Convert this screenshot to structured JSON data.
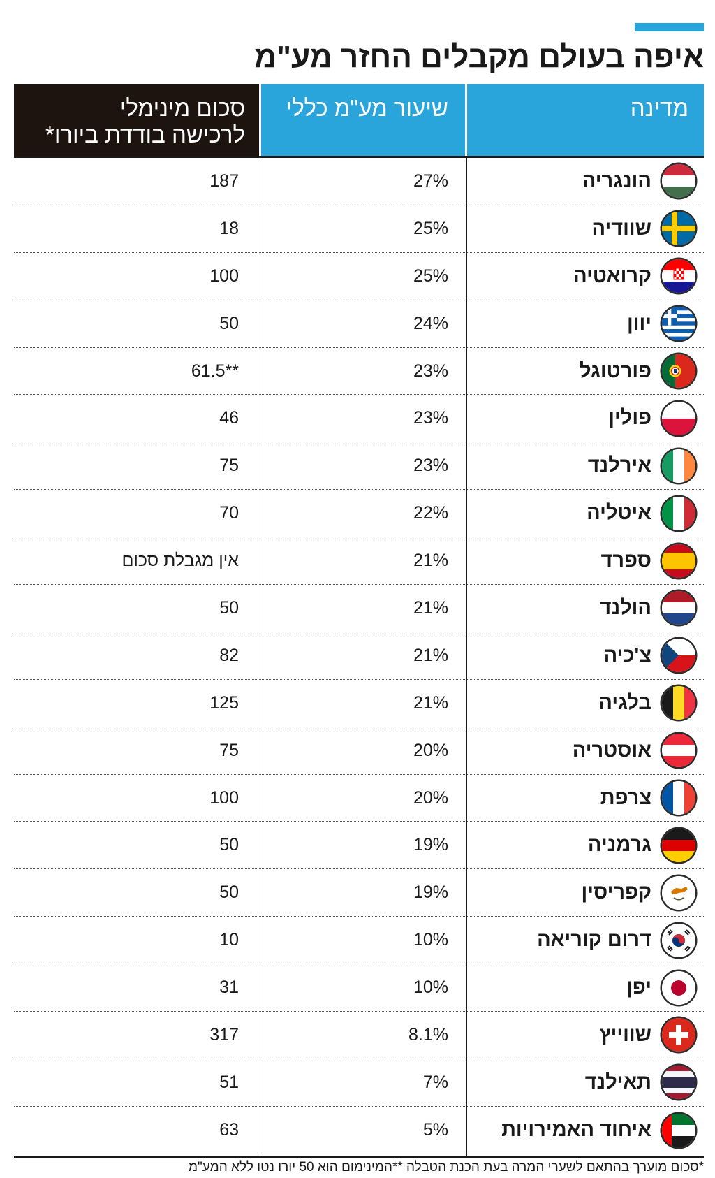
{
  "title": "איפה בעולם מקבלים החזר מע\"מ",
  "header": {
    "country": "מדינה",
    "vat": "שיעור מע\"מ כללי",
    "min_line1": "סכום מינימלי",
    "min_line2": "לרכישה בודדת ביורו*"
  },
  "footnote": "*סכום מוערך בהתאם לשערי המרה בעת הכנת הטבלה **המינימום הוא 50 יורו נטו ללא המע\"מ",
  "colors": {
    "accent": "#2aa5dc",
    "header_dark": "#1d140f",
    "text": "#1a1a1a"
  },
  "rows": [
    {
      "country": "הונגריה",
      "vat": "27%",
      "min": "187",
      "flag": "hungary-flag-icon"
    },
    {
      "country": "שוודיה",
      "vat": "25%",
      "min": "18",
      "flag": "sweden-flag-icon"
    },
    {
      "country": "קרואטיה",
      "vat": "25%",
      "min": "100",
      "flag": "croatia-flag-icon"
    },
    {
      "country": "יוון",
      "vat": "24%",
      "min": "50",
      "flag": "greece-flag-icon"
    },
    {
      "country": "פורטוגל",
      "vat": "23%",
      "min": "61.5**",
      "flag": "portugal-flag-icon"
    },
    {
      "country": "פולין",
      "vat": "23%",
      "min": "46",
      "flag": "poland-flag-icon"
    },
    {
      "country": "אירלנד",
      "vat": "23%",
      "min": "75",
      "flag": "ireland-flag-icon"
    },
    {
      "country": "איטליה",
      "vat": "22%",
      "min": "70",
      "flag": "italy-flag-icon"
    },
    {
      "country": "ספרד",
      "vat": "21%",
      "min": "אין מגבלת סכום",
      "flag": "spain-flag-icon"
    },
    {
      "country": "הולנד",
      "vat": "21%",
      "min": "50",
      "flag": "netherlands-flag-icon"
    },
    {
      "country": "צ'כיה",
      "vat": "21%",
      "min": "82",
      "flag": "czechia-flag-icon"
    },
    {
      "country": "בלגיה",
      "vat": "21%",
      "min": "125",
      "flag": "belgium-flag-icon"
    },
    {
      "country": "אוסטריה",
      "vat": "20%",
      "min": "75",
      "flag": "austria-flag-icon"
    },
    {
      "country": "צרפת",
      "vat": "20%",
      "min": "100",
      "flag": "france-flag-icon"
    },
    {
      "country": "גרמניה",
      "vat": "19%",
      "min": "50",
      "flag": "germany-flag-icon"
    },
    {
      "country": "קפריסין",
      "vat": "19%",
      "min": "50",
      "flag": "cyprus-flag-icon"
    },
    {
      "country": "דרום קוריאה",
      "vat": "10%",
      "min": "10",
      "flag": "south-korea-flag-icon"
    },
    {
      "country": "יפן",
      "vat": "10%",
      "min": "31",
      "flag": "japan-flag-icon"
    },
    {
      "country": "שווייץ",
      "vat": "8.1%",
      "min": "317",
      "flag": "switzerland-flag-icon"
    },
    {
      "country": "תאילנד",
      "vat": "7%",
      "min": "51",
      "flag": "thailand-flag-icon"
    },
    {
      "country": "איחוד האמירויות",
      "vat": "5%",
      "min": "63",
      "flag": "uae-flag-icon"
    }
  ],
  "chart_data": {
    "type": "table",
    "title": "איפה בעולם מקבלים החזר מע\"מ",
    "columns": [
      "מדינה",
      "שיעור מע\"מ כללי",
      "סכום מינימלי לרכישה בודדת ביורו*"
    ],
    "rows": [
      [
        "הונגריה",
        "27%",
        "187"
      ],
      [
        "שוודיה",
        "25%",
        "18"
      ],
      [
        "קרואטיה",
        "25%",
        "100"
      ],
      [
        "יוון",
        "24%",
        "50"
      ],
      [
        "פורטוגל",
        "23%",
        "61.5**"
      ],
      [
        "פולין",
        "23%",
        "46"
      ],
      [
        "אירלנד",
        "23%",
        "75"
      ],
      [
        "איטליה",
        "22%",
        "70"
      ],
      [
        "ספרד",
        "21%",
        "אין מגבלת סכום"
      ],
      [
        "הולנד",
        "21%",
        "50"
      ],
      [
        "צ'כיה",
        "21%",
        "82"
      ],
      [
        "בלגיה",
        "21%",
        "125"
      ],
      [
        "אוסטריה",
        "20%",
        "75"
      ],
      [
        "צרפת",
        "20%",
        "100"
      ],
      [
        "גרמניה",
        "19%",
        "50"
      ],
      [
        "קפריסין",
        "19%",
        "50"
      ],
      [
        "דרום קוריאה",
        "10%",
        "10"
      ],
      [
        "יפן",
        "10%",
        "31"
      ],
      [
        "שווייץ",
        "8.1%",
        "317"
      ],
      [
        "תאילנד",
        "7%",
        "51"
      ],
      [
        "איחוד האמירויות",
        "5%",
        "63"
      ]
    ]
  }
}
